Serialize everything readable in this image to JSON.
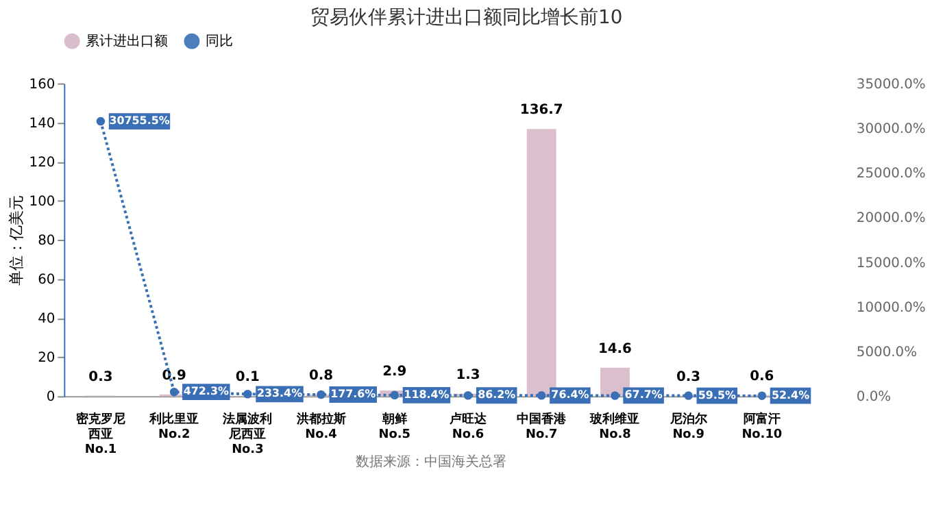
{
  "chart_data": {
    "type": "bar",
    "title": "贸易伙伴累计进出口额同比增长前10",
    "categories": [
      "密克罗尼西亚 No.1",
      "利比里亚 No.2",
      "法属波利尼西亚 No.3",
      "洪都拉斯 No.4",
      "朝鲜 No.5",
      "卢旺达 No.6",
      "中国香港 No.7",
      "玻利维亚 No.8",
      "尼泊尔 No.9",
      "阿富汗 No.10"
    ],
    "ylabel": "单位：亿美元",
    "ylim": [
      0,
      160
    ],
    "yticks": [
      0,
      20,
      40,
      60,
      80,
      100,
      120,
      140,
      160
    ],
    "y2lim": [
      0,
      35000
    ],
    "y2ticks": [
      {
        "value": 0,
        "label": "0.0%"
      },
      {
        "value": 5000,
        "label": "5000.0%"
      },
      {
        "value": 10000,
        "label": "10000.0%"
      },
      {
        "value": 15000,
        "label": "15000.0%"
      },
      {
        "value": 20000,
        "label": "20000.0%"
      },
      {
        "value": 25000,
        "label": "25000.0%"
      },
      {
        "value": 30000,
        "label": "30000.0%"
      },
      {
        "value": 35000,
        "label": "35000.0%"
      }
    ],
    "series": [
      {
        "name": "累计进出口额",
        "color": "#d7b8c8",
        "values": [
          0.3,
          0.9,
          0.1,
          0.8,
          2.9,
          1.3,
          136.7,
          14.6,
          0.3,
          0.6
        ]
      },
      {
        "name": "同比",
        "type": "line",
        "axis": "y2",
        "color": "#3a6fb5",
        "marker": "circle",
        "line_style": "dotted",
        "values": [
          30755.5,
          472.3,
          233.4,
          177.6,
          118.4,
          86.2,
          76.4,
          67.7,
          59.5,
          52.4
        ],
        "value_labels": [
          "30755.5%",
          "472.3%",
          "233.4%",
          "177.6%",
          "118.4%",
          "86.2%",
          "76.4%",
          "67.7%",
          "59.5%",
          "52.4%"
        ]
      }
    ],
    "data_labels": true,
    "legend": "top",
    "grid": false,
    "annotations": [
      "数据来源：中国海关总署"
    ]
  }
}
